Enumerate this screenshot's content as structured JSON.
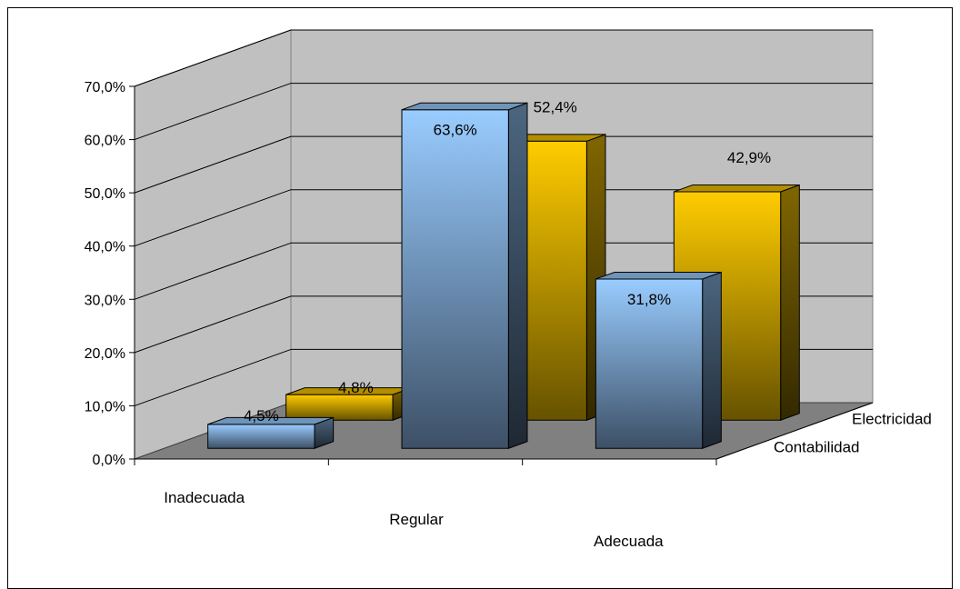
{
  "chart_data": {
    "type": "bar",
    "title": "",
    "categories": [
      "Inadecuada",
      "Regular",
      "Adecuada"
    ],
    "series": [
      {
        "name": "Contabilidad",
        "values": [
          4.5,
          63.6,
          31.8
        ],
        "labels": [
          "4,5%",
          "63,6%",
          "31,8%"
        ],
        "color": "#99ccff"
      },
      {
        "name": "Electricidad",
        "values": [
          4.8,
          52.4,
          42.9
        ],
        "labels": [
          "4,8%",
          "52,4%",
          "42,9%"
        ],
        "color": "#ffcc00"
      }
    ],
    "ylim": [
      0,
      70
    ],
    "yticks": [
      "0,0%",
      "10,0%",
      "20,0%",
      "30,0%",
      "40,0%",
      "50,0%",
      "60,0%",
      "70,0%"
    ],
    "grid": true,
    "projection": "3d"
  }
}
